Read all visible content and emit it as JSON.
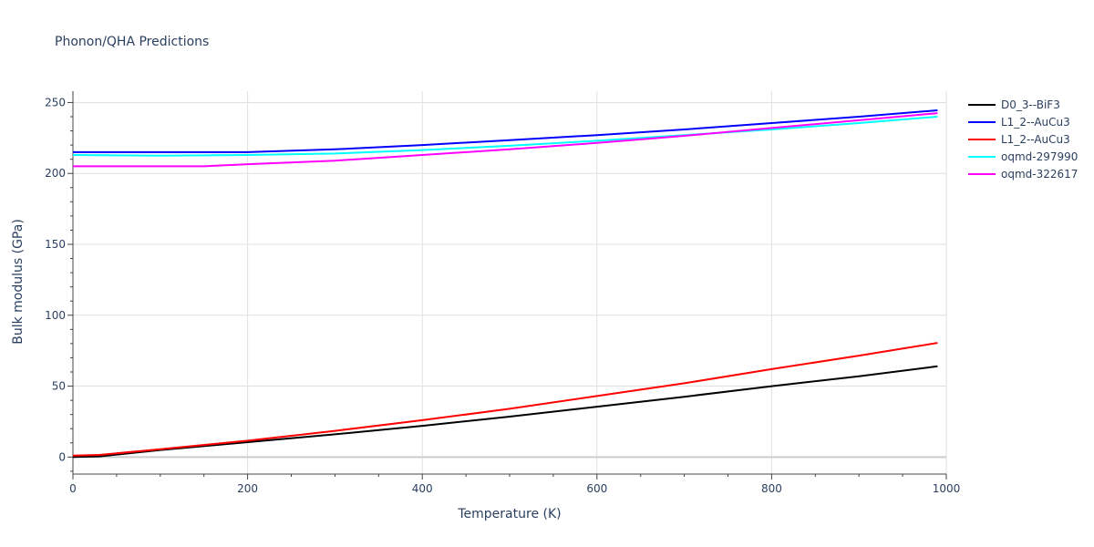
{
  "chart_data": {
    "type": "line",
    "title": "Phonon/QHA Predictions",
    "xlabel": "Temperature (K)",
    "ylabel": "Bulk modulus (GPa)",
    "xlim": [
      0,
      1000
    ],
    "ylim": [
      -12,
      258
    ],
    "xticks": [
      0,
      200,
      400,
      600,
      800,
      1000
    ],
    "yticks": [
      0,
      50,
      100,
      150,
      200,
      250
    ],
    "grid": true,
    "legend_position": "top-right",
    "series": [
      {
        "name": "D0_3--BiF3",
        "color": "#000000",
        "x": [
          0,
          30,
          100,
          200,
          300,
          400,
          500,
          600,
          700,
          800,
          900,
          990
        ],
        "y": [
          0,
          0.5,
          5,
          10.5,
          16,
          22,
          28.5,
          35.5,
          42.5,
          50,
          57,
          64
        ]
      },
      {
        "name": "L1_2--AuCu3",
        "color": "#0000ff",
        "x": [
          0,
          100,
          200,
          300,
          400,
          500,
          600,
          700,
          800,
          900,
          990
        ],
        "y": [
          215,
          215,
          215,
          217,
          220,
          223.5,
          227,
          231,
          235.5,
          240,
          244.5
        ]
      },
      {
        "name": "L1_2--AuCu3",
        "color": "#ff0000",
        "x": [
          0,
          30,
          100,
          200,
          300,
          400,
          500,
          600,
          700,
          800,
          900,
          990
        ],
        "y": [
          1,
          1.5,
          5.5,
          11.5,
          18.5,
          26,
          34,
          43,
          52,
          62,
          71.5,
          80.5
        ]
      },
      {
        "name": "oqmd-297990",
        "color": "#00ffff",
        "x": [
          0,
          100,
          200,
          300,
          400,
          500,
          600,
          700,
          800,
          900,
          990
        ],
        "y": [
          213,
          212.5,
          213,
          214,
          216.5,
          219.5,
          223,
          227,
          231,
          235.5,
          240
        ]
      },
      {
        "name": "oqmd-322617",
        "color": "#ff00ff",
        "x": [
          0,
          100,
          150,
          200,
          300,
          400,
          500,
          600,
          700,
          800,
          900,
          990
        ],
        "y": [
          205,
          205,
          205,
          206.5,
          209,
          213,
          217,
          221.5,
          226.5,
          232,
          237.5,
          242.5
        ]
      }
    ]
  }
}
